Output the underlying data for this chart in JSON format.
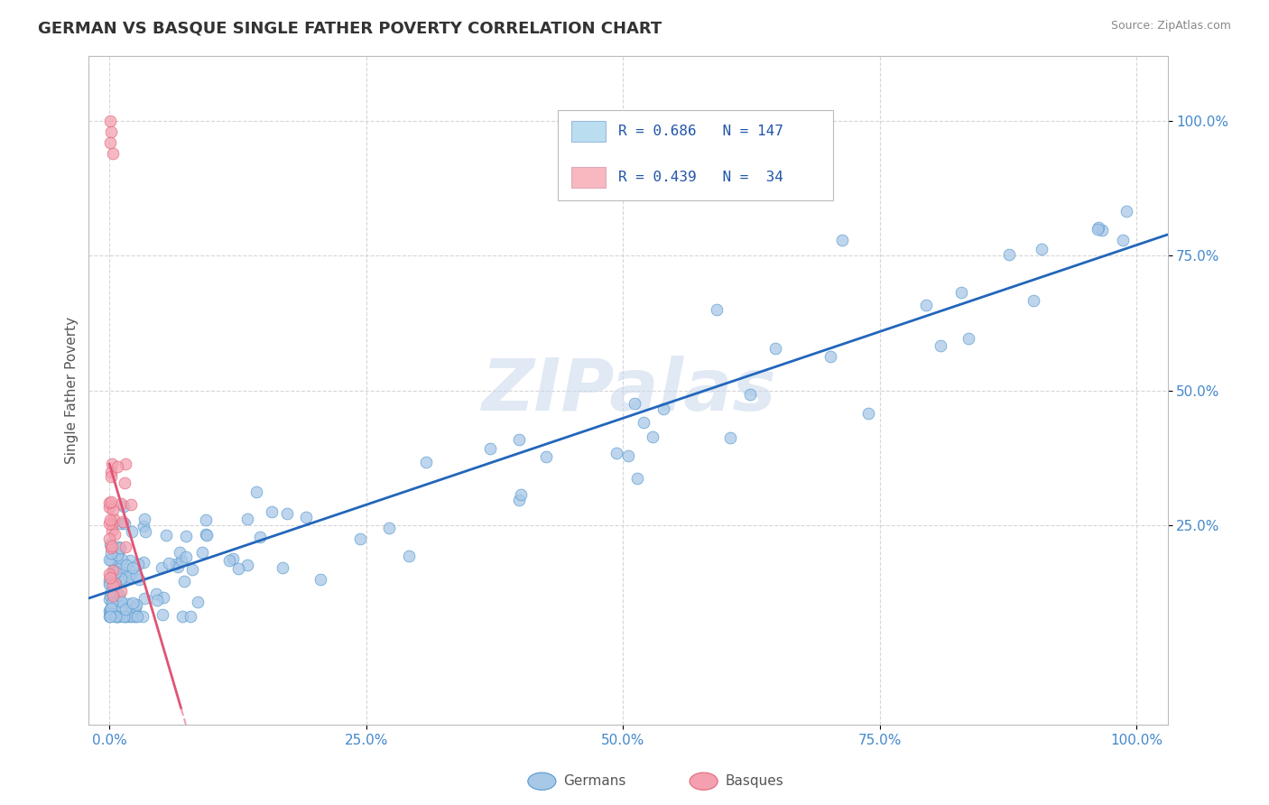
{
  "title": "GERMAN VS BASQUE SINGLE FATHER POVERTY CORRELATION CHART",
  "source": "Source: ZipAtlas.com",
  "ylabel": "Single Father Poverty",
  "xtick_labels": [
    "0.0%",
    "25.0%",
    "50.0%",
    "75.0%",
    "100.0%"
  ],
  "xtick_vals": [
    0.0,
    0.25,
    0.5,
    0.75,
    1.0
  ],
  "ytick_labels": [
    "25.0%",
    "50.0%",
    "75.0%",
    "100.0%"
  ],
  "ytick_vals": [
    0.25,
    0.5,
    0.75,
    1.0
  ],
  "german_fill": "#A8C8E8",
  "german_edge": "#5599CC",
  "basque_fill": "#F4A0B0",
  "basque_edge": "#E06878",
  "german_line_color": "#2266BB",
  "basque_line_color": "#E05575",
  "basque_dash_color": "#F0A0B8",
  "legend_box_blue": "#BBDDF0",
  "legend_box_pink": "#F8B8C0",
  "legend_text_color": "#2255AA",
  "R_german": 0.686,
  "N_german": 147,
  "R_basque": 0.439,
  "N_basque": 34,
  "watermark": "ZIPalas",
  "xlim": [
    -0.02,
    1.03
  ],
  "ylim": [
    -0.12,
    1.12
  ]
}
